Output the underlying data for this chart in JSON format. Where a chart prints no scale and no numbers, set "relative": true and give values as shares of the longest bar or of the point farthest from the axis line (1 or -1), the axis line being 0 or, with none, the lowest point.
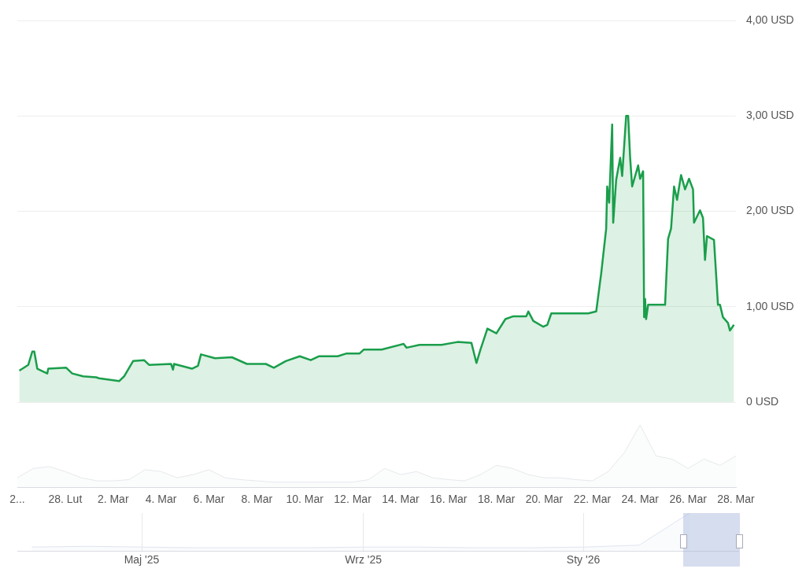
{
  "chart_data": [
    {
      "type": "area",
      "series": [
        {
          "color": "#1a9e4b",
          "x": [
            "--02-26T02:00",
            "--02-26T11:00",
            "--02-26T15:00",
            "--02-26T17:00",
            "--02-26T20:00",
            "--02-27T06:00",
            "--02-27T07:00",
            "--02-28T01:00",
            "--02-28T07:00",
            "--02-28T18:00",
            "--03-01T07:00",
            "--03-01T10:00",
            "--03-02T06:00",
            "--03-02T11:00",
            "--03-02T20:00",
            "--03-03T07:00",
            "--03-03T12:00",
            "--03-04T10:00",
            "--03-04T12:00",
            "--03-04T13:00",
            "--03-05T07:00",
            "--03-05T13:00",
            "--03-05T16:00",
            "--03-06T06:00",
            "--03-06T23:00",
            "--03-07T14:00",
            "--03-08T09:00",
            "--03-08T17:00",
            "--03-09T05:00",
            "--03-09T19:00",
            "--03-10T06:00",
            "--03-10T14:00",
            "--03-11T09:00",
            "--03-11T18:00",
            "--03-12T07:00",
            "--03-12T11:00",
            "--03-13T05:00",
            "--03-14T03:00",
            "--03-14T06:00",
            "--03-14T19:00",
            "--03-15T17:00",
            "--03-16T09:00",
            "--03-16T23:00",
            "--03-17T04:00",
            "--03-17T08:00",
            "--03-17T15:00",
            "--03-18T00:00",
            "--03-18T09:00",
            "--03-18T17:00",
            "--03-19T06:00",
            "--03-19T08:00",
            "--03-19T13:00",
            "--03-19T23:00",
            "--03-20T03:00",
            "--03-20T07:00",
            "--03-20T23:00",
            "--03-21T20:00",
            "--03-22T04:00",
            "--03-22T09:00",
            "--03-22T14:00",
            "--03-22T15:00",
            "--03-22T17:00",
            "--03-22T20:00",
            "--03-22T21:00",
            "--03-23T00:00",
            "--03-23T04:00",
            "--03-23T06:00",
            "--03-23T10:00",
            "--03-23T12:00",
            "--03-23T14:00",
            "--03-23T16:00",
            "--03-23T22:00",
            "--03-24T00:00",
            "--03-24T03:00",
            "--03-24T04:00",
            "--03-24T05:00",
            "--03-24T06:00",
            "--03-24T08:00",
            "--03-25T01:00",
            "--03-25T04:00",
            "--03-25T07:00",
            "--03-25T10:00",
            "--03-25T13:00",
            "--03-25T17:00",
            "--03-25T21:00",
            "--03-26T01:00",
            "--03-26T05:00",
            "--03-26T06:00",
            "--03-26T12:00",
            "--03-26T15:00",
            "--03-26T17:00",
            "--03-26T19:00",
            "--03-27T02:00",
            "--03-27T06:00",
            "--03-27T08:00",
            "--03-27T11:00",
            "--03-27T16:00",
            "--03-27T18:00",
            "--03-27T22:00"
          ],
          "values": [
            0.33,
            0.39,
            0.53,
            0.53,
            0.35,
            0.3,
            0.35,
            0.36,
            0.3,
            0.27,
            0.26,
            0.25,
            0.22,
            0.27,
            0.43,
            0.44,
            0.39,
            0.4,
            0.34,
            0.4,
            0.35,
            0.38,
            0.5,
            0.46,
            0.47,
            0.4,
            0.4,
            0.36,
            0.43,
            0.48,
            0.44,
            0.48,
            0.48,
            0.51,
            0.51,
            0.55,
            0.55,
            0.61,
            0.57,
            0.6,
            0.6,
            0.63,
            0.62,
            0.41,
            0.55,
            0.77,
            0.72,
            0.87,
            0.9,
            0.9,
            0.95,
            0.85,
            0.79,
            0.81,
            0.93,
            0.93,
            0.93,
            0.95,
            1.35,
            1.82,
            2.26,
            2.09,
            2.91,
            1.88,
            2.33,
            2.56,
            2.37,
            3.0,
            3.0,
            2.56,
            2.26,
            2.48,
            2.34,
            2.42,
            0.89,
            1.08,
            0.87,
            1.02,
            1.02,
            1.71,
            1.82,
            2.26,
            2.12,
            2.38,
            2.23,
            2.34,
            2.23,
            1.88,
            2.01,
            1.93,
            1.49,
            1.74,
            1.7,
            1.02,
            1.02,
            0.89,
            0.83,
            0.75,
            0.81
          ]
        }
      ],
      "xlim": [
        "--02-26",
        "--03-28"
      ],
      "xticks": [
        {
          "value": "--02-26",
          "label": "2..."
        },
        {
          "value": "--02-28",
          "label": "28. Lut"
        },
        {
          "value": "--03-02",
          "label": "2. Mar"
        },
        {
          "value": "--03-04",
          "label": "4. Mar"
        },
        {
          "value": "--03-06",
          "label": "6. Mar"
        },
        {
          "value": "--03-08",
          "label": "8. Mar"
        },
        {
          "value": "--03-10",
          "label": "10. Mar"
        },
        {
          "value": "--03-12",
          "label": "12. Mar"
        },
        {
          "value": "--03-14",
          "label": "14. Mar"
        },
        {
          "value": "--03-16",
          "label": "16. Mar"
        },
        {
          "value": "--03-18",
          "label": "18. Mar"
        },
        {
          "value": "--03-20",
          "label": "20. Mar"
        },
        {
          "value": "--03-22",
          "label": "22. Mar"
        },
        {
          "value": "--03-24",
          "label": "24. Mar"
        },
        {
          "value": "--03-26",
          "label": "26. Mar"
        },
        {
          "value": "--03-28",
          "label": "28. Mar"
        }
      ],
      "ylim": [
        0,
        4
      ],
      "yticks": [
        {
          "value": 0,
          "label": "0 USD"
        },
        {
          "value": 1,
          "label": "1,00 USD"
        },
        {
          "value": 2,
          "label": "2,00 USD"
        },
        {
          "value": 3,
          "label": "3,00 USD"
        },
        {
          "value": 4,
          "label": "4,00 USD"
        }
      ],
      "grid": "y"
    },
    {
      "type": "area",
      "relative": true,
      "tick_labels": false,
      "categories": [
        null,
        null,
        null,
        null,
        null,
        null,
        null,
        null,
        null,
        null,
        null,
        null,
        null,
        null,
        null,
        null,
        null,
        null,
        null,
        null,
        null,
        null,
        null,
        null,
        null,
        null,
        null,
        null,
        null,
        null,
        null,
        null,
        null,
        null,
        null,
        null,
        null,
        null,
        null,
        null,
        null,
        null,
        null,
        null,
        null,
        null
      ],
      "series": [
        {
          "color": "#e6e8eb",
          "values": [
            0.15,
            0.3,
            0.33,
            0.25,
            0.15,
            0.1,
            0.1,
            0.12,
            0.28,
            0.25,
            0.15,
            0.2,
            0.28,
            0.15,
            0.12,
            0.1,
            0.08,
            0.08,
            0.08,
            0.08,
            0.08,
            0.08,
            0.12,
            0.3,
            0.2,
            0.25,
            0.15,
            0.12,
            0.1,
            0.2,
            0.35,
            0.3,
            0.2,
            0.15,
            0.15,
            0.12,
            0.1,
            0.25,
            0.55,
            1,
            0.5,
            0.45,
            0.3,
            0.45,
            0.35,
            0.5
          ]
        }
      ]
    },
    {
      "type": "area",
      "relative": true,
      "tick_labels": "x",
      "grid": "x",
      "series": [
        {
          "color": "#dfe4f0",
          "x": [
            "2025-03",
            "2025-04",
            "2025-05",
            "2025-06",
            "2025-07",
            "2025-08",
            "2025-09",
            "2025-10",
            "2025-11",
            "2025-12",
            "2026-01",
            "2026-02",
            "2026-03"
          ],
          "values": [
            0.1,
            0.12,
            0.1,
            0.08,
            0.08,
            0.08,
            0.1,
            0.1,
            0.08,
            0.08,
            0.1,
            0.15,
            1
          ]
        }
      ],
      "xlim": [
        "2025-02-21",
        "2026-03-28"
      ],
      "xticks": [
        {
          "value": "2025-05",
          "label": "Maj '25"
        },
        {
          "value": "2025-09",
          "label": "Wrz '25"
        },
        {
          "value": "2026-01",
          "label": "Sty '26"
        }
      ]
    }
  ]
}
